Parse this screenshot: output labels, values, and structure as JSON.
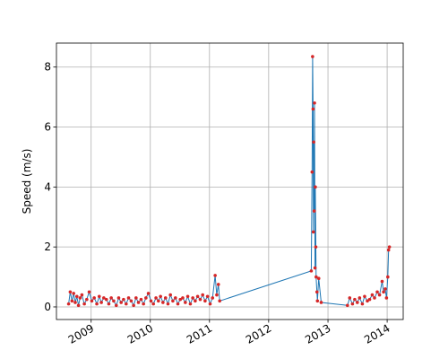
{
  "chart_data": {
    "type": "line",
    "title": "",
    "xlabel": "",
    "ylabel": "Speed (m/s)",
    "x_axis": "date",
    "xlim": [
      "2008-06-01",
      "2014-04-10"
    ],
    "ylim": [
      -0.42,
      8.8
    ],
    "x_tick_labels": [
      "2009",
      "2010",
      "2011",
      "2012",
      "2013",
      "2014"
    ],
    "y_tick_labels": [
      "0",
      "2",
      "4",
      "6",
      "8"
    ],
    "grid": true,
    "legend": "none",
    "colors": {
      "line": "#1f77b4",
      "marker": "#d62728"
    },
    "series": [
      {
        "x": [
          "2008-08-15",
          "2008-08-25",
          "2008-09-05",
          "2008-09-15",
          "2008-09-25",
          "2008-10-05",
          "2008-10-15",
          "2008-10-25",
          "2008-11-05",
          "2008-11-20",
          "2008-12-05",
          "2008-12-20",
          "2009-01-05",
          "2009-01-20",
          "2009-02-05",
          "2009-02-20",
          "2009-03-05",
          "2009-03-20",
          "2009-04-05",
          "2009-04-20",
          "2009-05-05",
          "2009-05-20",
          "2009-06-05",
          "2009-06-20",
          "2009-07-05",
          "2009-07-20",
          "2009-08-05",
          "2009-08-20",
          "2009-09-05",
          "2009-09-20",
          "2009-10-05",
          "2009-10-20",
          "2009-11-05",
          "2009-11-20",
          "2009-12-05",
          "2009-12-20",
          "2010-01-05",
          "2010-01-20",
          "2010-02-05",
          "2010-02-20",
          "2010-03-05",
          "2010-03-20",
          "2010-04-05",
          "2010-04-20",
          "2010-05-05",
          "2010-05-20",
          "2010-06-05",
          "2010-06-20",
          "2010-07-05",
          "2010-07-20",
          "2010-08-05",
          "2010-08-20",
          "2010-09-05",
          "2010-09-20",
          "2010-10-05",
          "2010-10-20",
          "2010-11-05",
          "2010-11-20",
          "2010-12-05",
          "2010-12-20",
          "2011-01-05",
          "2011-01-20",
          "2011-02-05",
          "2011-02-15",
          "2011-02-25",
          "2011-03-05",
          "2012-09-20",
          "2012-09-25",
          "2012-09-28",
          "2012-10-01",
          "2012-10-03",
          "2012-10-05",
          "2012-10-08",
          "2012-10-10",
          "2012-10-13",
          "2012-10-15",
          "2012-10-18",
          "2012-10-20",
          "2012-10-25",
          "2012-10-28",
          "2012-11-05",
          "2012-11-20",
          "2013-05-01",
          "2013-05-15",
          "2013-06-01",
          "2013-06-15",
          "2013-07-01",
          "2013-07-15",
          "2013-08-01",
          "2013-08-15",
          "2013-09-01",
          "2013-09-15",
          "2013-10-01",
          "2013-10-15",
          "2013-11-01",
          "2013-11-15",
          "2013-12-01",
          "2013-12-10",
          "2013-12-20",
          "2013-12-28",
          "2014-01-05",
          "2014-01-10",
          "2014-01-15"
        ],
        "y": [
          0.1,
          0.5,
          0.2,
          0.45,
          0.15,
          0.35,
          0.05,
          0.3,
          0.4,
          0.1,
          0.25,
          0.5,
          0.2,
          0.3,
          0.1,
          0.35,
          0.15,
          0.3,
          0.25,
          0.1,
          0.3,
          0.2,
          0.05,
          0.3,
          0.15,
          0.25,
          0.1,
          0.3,
          0.2,
          0.05,
          0.3,
          0.15,
          0.25,
          0.1,
          0.3,
          0.45,
          0.2,
          0.1,
          0.3,
          0.2,
          0.35,
          0.15,
          0.3,
          0.1,
          0.4,
          0.2,
          0.3,
          0.1,
          0.25,
          0.3,
          0.15,
          0.35,
          0.1,
          0.3,
          0.2,
          0.35,
          0.25,
          0.4,
          0.2,
          0.35,
          0.1,
          0.3,
          1.05,
          0.4,
          0.75,
          0.2,
          1.2,
          4.5,
          8.35,
          6.6,
          2.5,
          5.5,
          3.2,
          6.8,
          1.3,
          4.0,
          2.0,
          1.0,
          0.5,
          0.2,
          0.95,
          0.15,
          0.05,
          0.3,
          0.1,
          0.25,
          0.15,
          0.3,
          0.1,
          0.35,
          0.2,
          0.25,
          0.4,
          0.3,
          0.5,
          0.4,
          0.85,
          0.5,
          0.6,
          0.3,
          1.0,
          1.9,
          2.0
        ]
      }
    ]
  }
}
